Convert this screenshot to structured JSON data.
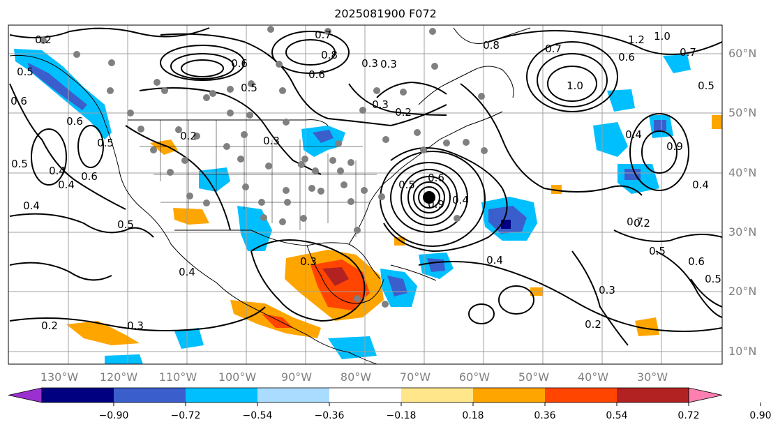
{
  "title": "2025081900 F072",
  "map": {
    "lon_ticks": [
      "130°W",
      "120°W",
      "110°W",
      "100°W",
      "90°W",
      "80°W",
      "70°W",
      "60°W",
      "50°W",
      "40°W",
      "30°W"
    ],
    "lat_ticks": [
      "60°N",
      "50°N",
      "40°N",
      "30°N",
      "20°N",
      "10°N"
    ],
    "grid": true,
    "contour_labels": [
      "0.2",
      "0.7",
      "0.8",
      "0.6",
      "0.6",
      "0.5",
      "0.3",
      "0.2",
      "0.8",
      "0.7",
      "1.0",
      "1.2",
      "1.0",
      "0.7",
      "0.5",
      "0.6",
      "0.5",
      "0.6",
      "0.6",
      "0.5",
      "0.4",
      "0.6",
      "0.5",
      "0.4",
      "0.2",
      "0.3",
      "0.5",
      "0.4",
      "0.6",
      "0.4",
      "0.5",
      "0.9",
      "0.4",
      "0.3",
      "0.3",
      "0.5",
      "0.7",
      "0.4",
      "0.9",
      "0.2",
      "0.3",
      "0.2",
      "0.2",
      "0.4",
      "0.3",
      "0.3",
      "0.4",
      "0.5",
      "0.6"
    ]
  },
  "colorbar": {
    "ticks": [
      "−0.90",
      "−0.72",
      "−0.54",
      "−0.36",
      "−0.18",
      "0.18",
      "0.36",
      "0.54",
      "0.72",
      "0.90"
    ],
    "colors": [
      "#9b30d0",
      "#000080",
      "#3a5fcd",
      "#00bfff",
      "#aadcff",
      "#ffffff",
      "#ffe68a",
      "#ffa500",
      "#ff4500",
      "#b22222",
      "#ff80b0"
    ]
  }
}
